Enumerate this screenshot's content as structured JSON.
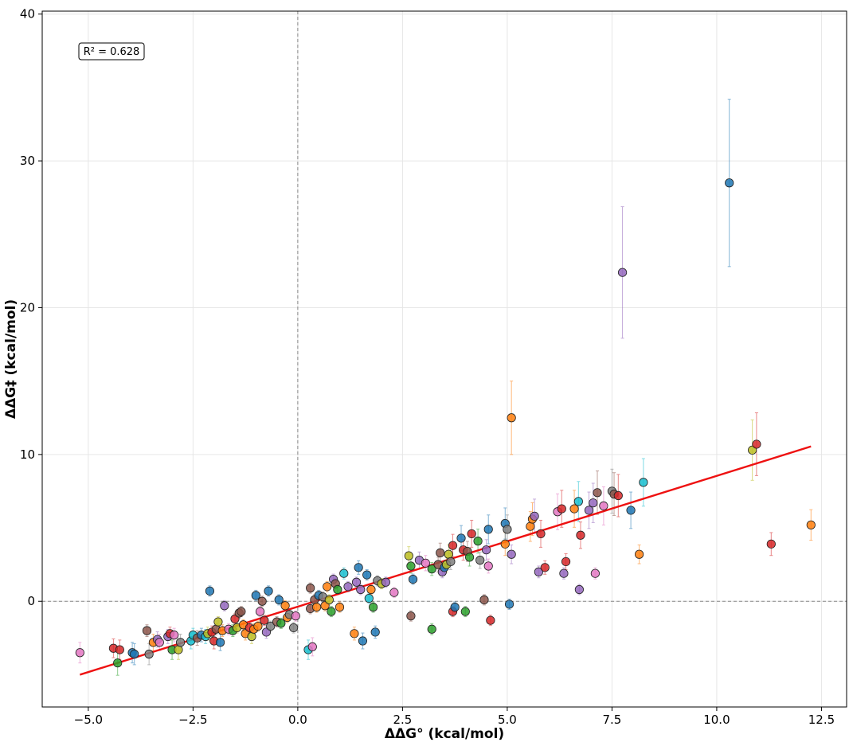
{
  "chart_data": {
    "type": "scatter",
    "xlabel": "ΔΔG° (kcal/mol)",
    "ylabel": "ΔΔG‡ (kcal/mol)",
    "xlim": [
      -6.1,
      13.1
    ],
    "ylim": [
      -7.2,
      40.2
    ],
    "x_ticks": [
      -5.0,
      -2.5,
      0.0,
      2.5,
      5.0,
      7.5,
      10.0,
      12.5
    ],
    "x_tick_labels": [
      "−5.0",
      "−2.5",
      "0.0",
      "2.5",
      "5.0",
      "7.5",
      "10.0",
      "12.5"
    ],
    "y_ticks": [
      0,
      10,
      20,
      30,
      40
    ],
    "y_tick_labels": [
      "0",
      "10",
      "20",
      "30",
      "40"
    ],
    "grid": true,
    "reference_lines": {
      "x": 0,
      "y": 0,
      "style": "dashed",
      "color": "#888888"
    },
    "annotation": "R² = 0.628",
    "fit_line": {
      "color": "#ee1111",
      "x": [
        -5.2,
        12.25
      ],
      "y": [
        -5.0,
        10.55
      ]
    },
    "palette": [
      "#1f77b4",
      "#ff7f0e",
      "#2ca02c",
      "#d62728",
      "#9467bd",
      "#8c564b",
      "#e377c2",
      "#7f7f7f",
      "#bcbd22",
      "#17becf"
    ],
    "points": [
      {
        "x": -5.2,
        "y": -3.5,
        "c": 6
      },
      {
        "x": -4.4,
        "y": -3.2,
        "c": 3
      },
      {
        "x": -4.3,
        "y": -4.2,
        "c": 2
      },
      {
        "x": -4.25,
        "y": -3.3,
        "c": 3
      },
      {
        "x": -3.95,
        "y": -3.5,
        "c": 0
      },
      {
        "x": -3.9,
        "y": -3.6,
        "c": 0
      },
      {
        "x": -3.6,
        "y": -2.0,
        "c": 5
      },
      {
        "x": -3.55,
        "y": -3.6,
        "c": 7
      },
      {
        "x": -3.45,
        "y": -2.8,
        "c": 1
      },
      {
        "x": -3.35,
        "y": -2.6,
        "c": 4
      },
      {
        "x": -3.3,
        "y": -2.8,
        "c": 6
      },
      {
        "x": -3.1,
        "y": -2.4,
        "c": 4
      },
      {
        "x": -3.05,
        "y": -2.2,
        "c": 3
      },
      {
        "x": -3.0,
        "y": -3.3,
        "c": 2
      },
      {
        "x": -2.95,
        "y": -2.3,
        "c": 6
      },
      {
        "x": -2.85,
        "y": -3.3,
        "c": 8
      },
      {
        "x": -2.8,
        "y": -2.8,
        "c": 7
      },
      {
        "x": -2.55,
        "y": -2.7,
        "c": 9
      },
      {
        "x": -2.5,
        "y": -2.3,
        "c": 9
      },
      {
        "x": -2.4,
        "y": -2.5,
        "c": 5
      },
      {
        "x": -2.3,
        "y": -2.3,
        "c": 0
      },
      {
        "x": -2.2,
        "y": -2.4,
        "c": 9
      },
      {
        "x": -2.15,
        "y": -2.2,
        "c": 8
      },
      {
        "x": -2.1,
        "y": 0.7,
        "c": 0
      },
      {
        "x": -2.05,
        "y": -2.1,
        "c": 3
      },
      {
        "x": -2.0,
        "y": -2.7,
        "c": 3
      },
      {
        "x": -1.95,
        "y": -1.9,
        "c": 5
      },
      {
        "x": -1.9,
        "y": -1.4,
        "c": 8
      },
      {
        "x": -1.85,
        "y": -2.8,
        "c": 0
      },
      {
        "x": -1.8,
        "y": -2.0,
        "c": 1
      },
      {
        "x": -1.75,
        "y": -0.3,
        "c": 4
      },
      {
        "x": -1.65,
        "y": -1.9,
        "c": 6
      },
      {
        "x": -1.55,
        "y": -2.0,
        "c": 2
      },
      {
        "x": -1.5,
        "y": -1.2,
        "c": 3
      },
      {
        "x": -1.45,
        "y": -1.8,
        "c": 8
      },
      {
        "x": -1.4,
        "y": -0.8,
        "c": 5
      },
      {
        "x": -1.35,
        "y": -0.7,
        "c": 5
      },
      {
        "x": -1.3,
        "y": -1.6,
        "c": 1
      },
      {
        "x": -1.25,
        "y": -2.2,
        "c": 1
      },
      {
        "x": -1.15,
        "y": -1.8,
        "c": 3
      },
      {
        "x": -1.1,
        "y": -2.4,
        "c": 8
      },
      {
        "x": -1.05,
        "y": -1.9,
        "c": 1
      },
      {
        "x": -1.0,
        "y": 0.4,
        "c": 0
      },
      {
        "x": -0.95,
        "y": -1.7,
        "c": 1
      },
      {
        "x": -0.9,
        "y": -0.7,
        "c": 6
      },
      {
        "x": -0.85,
        "y": 0.0,
        "c": 5
      },
      {
        "x": -0.8,
        "y": -1.3,
        "c": 3
      },
      {
        "x": -0.75,
        "y": -2.1,
        "c": 4
      },
      {
        "x": -0.7,
        "y": 0.7,
        "c": 0
      },
      {
        "x": -0.65,
        "y": -1.7,
        "c": 7
      },
      {
        "x": -0.5,
        "y": -1.4,
        "c": 5
      },
      {
        "x": -0.45,
        "y": 0.1,
        "c": 0
      },
      {
        "x": -0.4,
        "y": -1.5,
        "c": 2
      },
      {
        "x": -0.3,
        "y": -0.3,
        "c": 1
      },
      {
        "x": -0.25,
        "y": -1.1,
        "c": 1
      },
      {
        "x": -0.2,
        "y": -0.9,
        "c": 7
      },
      {
        "x": -0.1,
        "y": -1.8,
        "c": 7
      },
      {
        "x": -0.05,
        "y": -1.0,
        "c": 6
      },
      {
        "x": 0.25,
        "y": -3.3,
        "c": 9
      },
      {
        "x": 0.3,
        "y": -0.5,
        "c": 5
      },
      {
        "x": 0.3,
        "y": 0.9,
        "c": 5
      },
      {
        "x": 0.35,
        "y": -3.1,
        "c": 6
      },
      {
        "x": 0.4,
        "y": 0.1,
        "c": 5
      },
      {
        "x": 0.45,
        "y": -0.4,
        "c": 1
      },
      {
        "x": 0.5,
        "y": 0.4,
        "c": 0
      },
      {
        "x": 0.6,
        "y": 0.3,
        "c": 7
      },
      {
        "x": 0.65,
        "y": -0.3,
        "c": 1
      },
      {
        "x": 0.7,
        "y": 1.0,
        "c": 1
      },
      {
        "x": 0.75,
        "y": 0.1,
        "c": 8
      },
      {
        "x": 0.8,
        "y": -0.7,
        "c": 2
      },
      {
        "x": 0.85,
        "y": 1.5,
        "c": 4
      },
      {
        "x": 0.9,
        "y": 1.2,
        "c": 5
      },
      {
        "x": 0.95,
        "y": 0.8,
        "c": 2
      },
      {
        "x": 1.0,
        "y": -0.4,
        "c": 1
      },
      {
        "x": 1.1,
        "y": 1.9,
        "c": 9
      },
      {
        "x": 1.2,
        "y": 1.0,
        "c": 4
      },
      {
        "x": 1.35,
        "y": -2.2,
        "c": 1
      },
      {
        "x": 1.4,
        "y": 1.3,
        "c": 4
      },
      {
        "x": 1.45,
        "y": 2.3,
        "c": 0
      },
      {
        "x": 1.5,
        "y": 0.8,
        "c": 4
      },
      {
        "x": 1.55,
        "y": -2.7,
        "c": 0
      },
      {
        "x": 1.65,
        "y": 1.8,
        "c": 0
      },
      {
        "x": 1.7,
        "y": 0.2,
        "c": 9
      },
      {
        "x": 1.75,
        "y": 0.8,
        "c": 1
      },
      {
        "x": 1.8,
        "y": -0.4,
        "c": 2
      },
      {
        "x": 1.85,
        "y": -2.1,
        "c": 0
      },
      {
        "x": 1.9,
        "y": 1.4,
        "c": 7
      },
      {
        "x": 2.0,
        "y": 1.2,
        "c": 8
      },
      {
        "x": 2.1,
        "y": 1.3,
        "c": 4
      },
      {
        "x": 2.3,
        "y": 0.6,
        "c": 6
      },
      {
        "x": 2.65,
        "y": 3.1,
        "c": 8
      },
      {
        "x": 2.7,
        "y": -1.0,
        "c": 5
      },
      {
        "x": 2.7,
        "y": 2.4,
        "c": 2
      },
      {
        "x": 2.75,
        "y": 1.5,
        "c": 0
      },
      {
        "x": 2.9,
        "y": 2.8,
        "c": 4
      },
      {
        "x": 3.05,
        "y": 2.6,
        "c": 6
      },
      {
        "x": 3.2,
        "y": 2.2,
        "c": 2
      },
      {
        "x": 3.2,
        "y": -1.9,
        "c": 2
      },
      {
        "x": 3.35,
        "y": 2.5,
        "c": 5
      },
      {
        "x": 3.4,
        "y": 3.3,
        "c": 5
      },
      {
        "x": 3.45,
        "y": 2.0,
        "c": 4
      },
      {
        "x": 3.5,
        "y": 2.3,
        "c": 0
      },
      {
        "x": 3.55,
        "y": 2.5,
        "c": 8
      },
      {
        "x": 3.6,
        "y": 3.2,
        "c": 8
      },
      {
        "x": 3.65,
        "y": 2.7,
        "c": 7
      },
      {
        "x": 3.7,
        "y": 3.8,
        "c": 3
      },
      {
        "x": 3.7,
        "y": -0.7,
        "c": 3
      },
      {
        "x": 3.75,
        "y": -0.4,
        "c": 0
      },
      {
        "x": 3.9,
        "y": 4.3,
        "c": 0
      },
      {
        "x": 3.95,
        "y": 3.5,
        "c": 3
      },
      {
        "x": 4.0,
        "y": -0.7,
        "c": 2
      },
      {
        "x": 4.05,
        "y": 3.4,
        "c": 5
      },
      {
        "x": 4.1,
        "y": 3.0,
        "c": 2
      },
      {
        "x": 4.15,
        "y": 4.6,
        "c": 3
      },
      {
        "x": 4.3,
        "y": 4.1,
        "c": 2
      },
      {
        "x": 4.35,
        "y": 2.8,
        "c": 7
      },
      {
        "x": 4.45,
        "y": 0.1,
        "c": 5
      },
      {
        "x": 4.5,
        "y": 3.5,
        "c": 4
      },
      {
        "x": 4.55,
        "y": 2.4,
        "c": 6
      },
      {
        "x": 4.55,
        "y": 4.9,
        "c": 0
      },
      {
        "x": 4.6,
        "y": -1.3,
        "c": 3
      },
      {
        "x": 4.95,
        "y": 3.9,
        "c": 1
      },
      {
        "x": 4.95,
        "y": 5.3,
        "c": 0
      },
      {
        "x": 5.0,
        "y": 4.9,
        "c": 7
      },
      {
        "x": 5.05,
        "y": -0.2,
        "c": 0
      },
      {
        "x": 5.1,
        "y": 12.5,
        "c": 1
      },
      {
        "x": 5.1,
        "y": 3.2,
        "c": 4
      },
      {
        "x": 5.55,
        "y": 5.1,
        "c": 1
      },
      {
        "x": 5.6,
        "y": 5.6,
        "c": 1
      },
      {
        "x": 5.65,
        "y": 5.8,
        "c": 4
      },
      {
        "x": 5.75,
        "y": 2.0,
        "c": 4
      },
      {
        "x": 5.8,
        "y": 4.6,
        "c": 3
      },
      {
        "x": 5.9,
        "y": 2.3,
        "c": 3
      },
      {
        "x": 6.2,
        "y": 6.1,
        "c": 6
      },
      {
        "x": 6.3,
        "y": 6.3,
        "c": 3
      },
      {
        "x": 6.35,
        "y": 1.9,
        "c": 4
      },
      {
        "x": 6.4,
        "y": 2.7,
        "c": 3
      },
      {
        "x": 6.6,
        "y": 6.3,
        "c": 1
      },
      {
        "x": 6.7,
        "y": 6.8,
        "c": 9
      },
      {
        "x": 6.72,
        "y": 0.8,
        "c": 4
      },
      {
        "x": 6.75,
        "y": 4.5,
        "c": 3
      },
      {
        "x": 6.95,
        "y": 6.2,
        "c": 4
      },
      {
        "x": 7.05,
        "y": 6.7,
        "c": 4
      },
      {
        "x": 7.1,
        "y": 1.9,
        "c": 6
      },
      {
        "x": 7.15,
        "y": 7.4,
        "c": 5
      },
      {
        "x": 7.3,
        "y": 6.5,
        "c": 6
      },
      {
        "x": 7.5,
        "y": 7.5,
        "c": 7
      },
      {
        "x": 7.55,
        "y": 7.3,
        "c": 5
      },
      {
        "x": 7.65,
        "y": 7.2,
        "c": 3
      },
      {
        "x": 7.75,
        "y": 22.4,
        "c": 4
      },
      {
        "x": 7.95,
        "y": 6.2,
        "c": 0
      },
      {
        "x": 8.15,
        "y": 3.2,
        "c": 1
      },
      {
        "x": 8.25,
        "y": 8.1,
        "c": 9
      },
      {
        "x": 10.3,
        "y": 28.5,
        "c": 0
      },
      {
        "x": 10.85,
        "y": 10.3,
        "c": 8
      },
      {
        "x": 10.95,
        "y": 10.7,
        "c": 3
      },
      {
        "x": 11.3,
        "y": 3.9,
        "c": 3
      },
      {
        "x": 12.25,
        "y": 5.2,
        "c": 1
      }
    ]
  }
}
